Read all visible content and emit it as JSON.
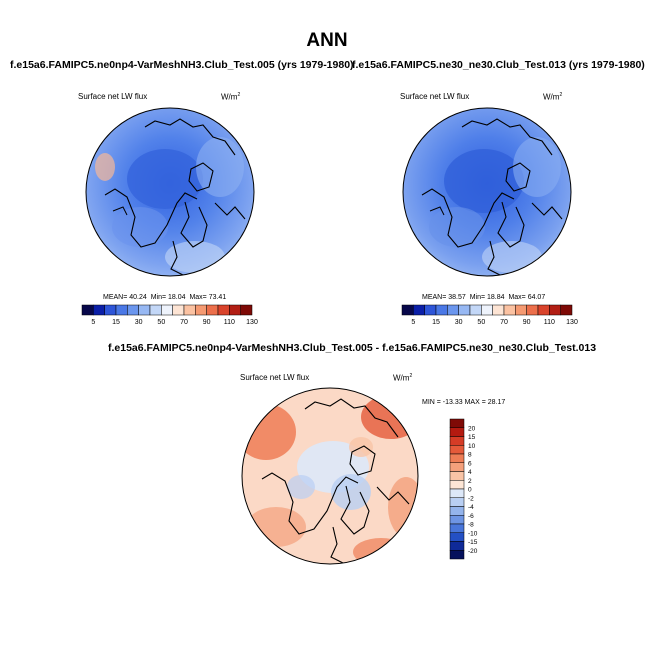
{
  "title": "ANN",
  "panels": [
    {
      "id": "test",
      "title": "f.e15a6.FAMIPC5.ne0np4-VarMeshNH3.Club_Test.005 (yrs 1979-1980)",
      "variable": "Surface net LW flux",
      "units": "W/m",
      "units_exp": "2",
      "stats": {
        "mean_label": "MEAN=",
        "mean": "40.24",
        "min_label": "Min=",
        "min": "18.04",
        "max_label": "Max=",
        "max": "73.41"
      }
    },
    {
      "id": "control",
      "title": "f.e15a6.FAMIPC5.ne30_ne30.Club_Test.013 (yrs 1979-1980)",
      "variable": "Surface net LW flux",
      "units": "W/m",
      "units_exp": "2",
      "stats": {
        "mean_label": "MEAN=",
        "mean": "38.57",
        "min_label": "Min=",
        "min": "18.84",
        "max_label": "Max=",
        "max": "64.07"
      }
    }
  ],
  "abs_colorbar": {
    "labels": [
      "5",
      "15",
      "30",
      "50",
      "70",
      "90",
      "110",
      "130"
    ],
    "colors": [
      "#08084a",
      "#0b1fa8",
      "#2e55d8",
      "#4a78e6",
      "#6b96ee",
      "#97b8f3",
      "#c3d7f7",
      "#eef3fc",
      "#fde4d4",
      "#fbc2a2",
      "#f59a72",
      "#ec6f4b",
      "#d9432b",
      "#b21e14",
      "#7e0a06"
    ]
  },
  "diff_panel": {
    "title": "f.e15a6.FAMIPC5.ne0np4-VarMeshNH3.Club_Test.005 - f.e15a6.FAMIPC5.ne30_ne30.Club_Test.013",
    "variable": "Surface net LW flux",
    "units": "W/m",
    "units_exp": "2",
    "minmax": "MIN = -13.33 MAX =  28.17"
  },
  "diff_colorbar": {
    "labels": [
      "20",
      "15",
      "10",
      "8",
      "6",
      "4",
      "2",
      "0",
      "-2",
      "-4",
      "-6",
      "-8",
      "-10",
      "-15",
      "-20"
    ],
    "colors": [
      "#7f0a06",
      "#b41a10",
      "#d53c26",
      "#e55a3a",
      "#ee7d56",
      "#f4a07c",
      "#f9c4a6",
      "#fde6d6",
      "#dde8f8",
      "#b9cff3",
      "#94b4ec",
      "#6e95e4",
      "#4976da",
      "#2450c4",
      "#0f2a98",
      "#05115c"
    ]
  }
}
